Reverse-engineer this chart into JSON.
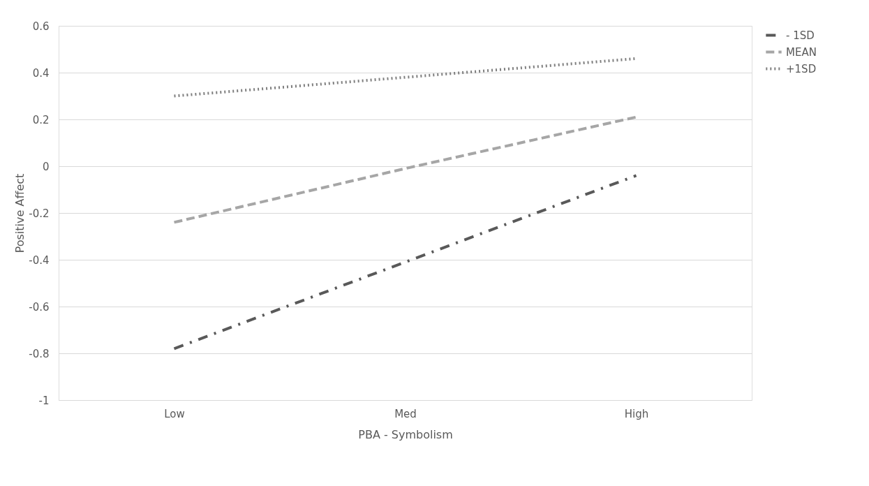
{
  "chart_data": {
    "type": "line",
    "xlabel": "PBA - Symbolism",
    "ylabel": "Positive Affect",
    "categories": [
      "Low",
      "Med",
      "High"
    ],
    "series": [
      {
        "name": "- 1SD",
        "color": "#595959",
        "line_style": "dashdot",
        "values": [
          -0.78,
          -0.41,
          -0.04
        ]
      },
      {
        "name": "MEAN",
        "color": "#a6a6a6",
        "line_style": "dashed",
        "values": [
          -0.24,
          -0.01,
          0.21
        ]
      },
      {
        "name": "+1SD",
        "color": "#7f7f7f",
        "line_style": "dotted",
        "values": [
          0.3,
          0.38,
          0.46
        ]
      }
    ],
    "ylim": [
      -1,
      0.6
    ],
    "yticks": [
      -1,
      -0.8,
      -0.6,
      -0.4,
      -0.2,
      0,
      0.2,
      0.4,
      0.6
    ],
    "grid": "y",
    "legend": "right",
    "marker": "none"
  }
}
